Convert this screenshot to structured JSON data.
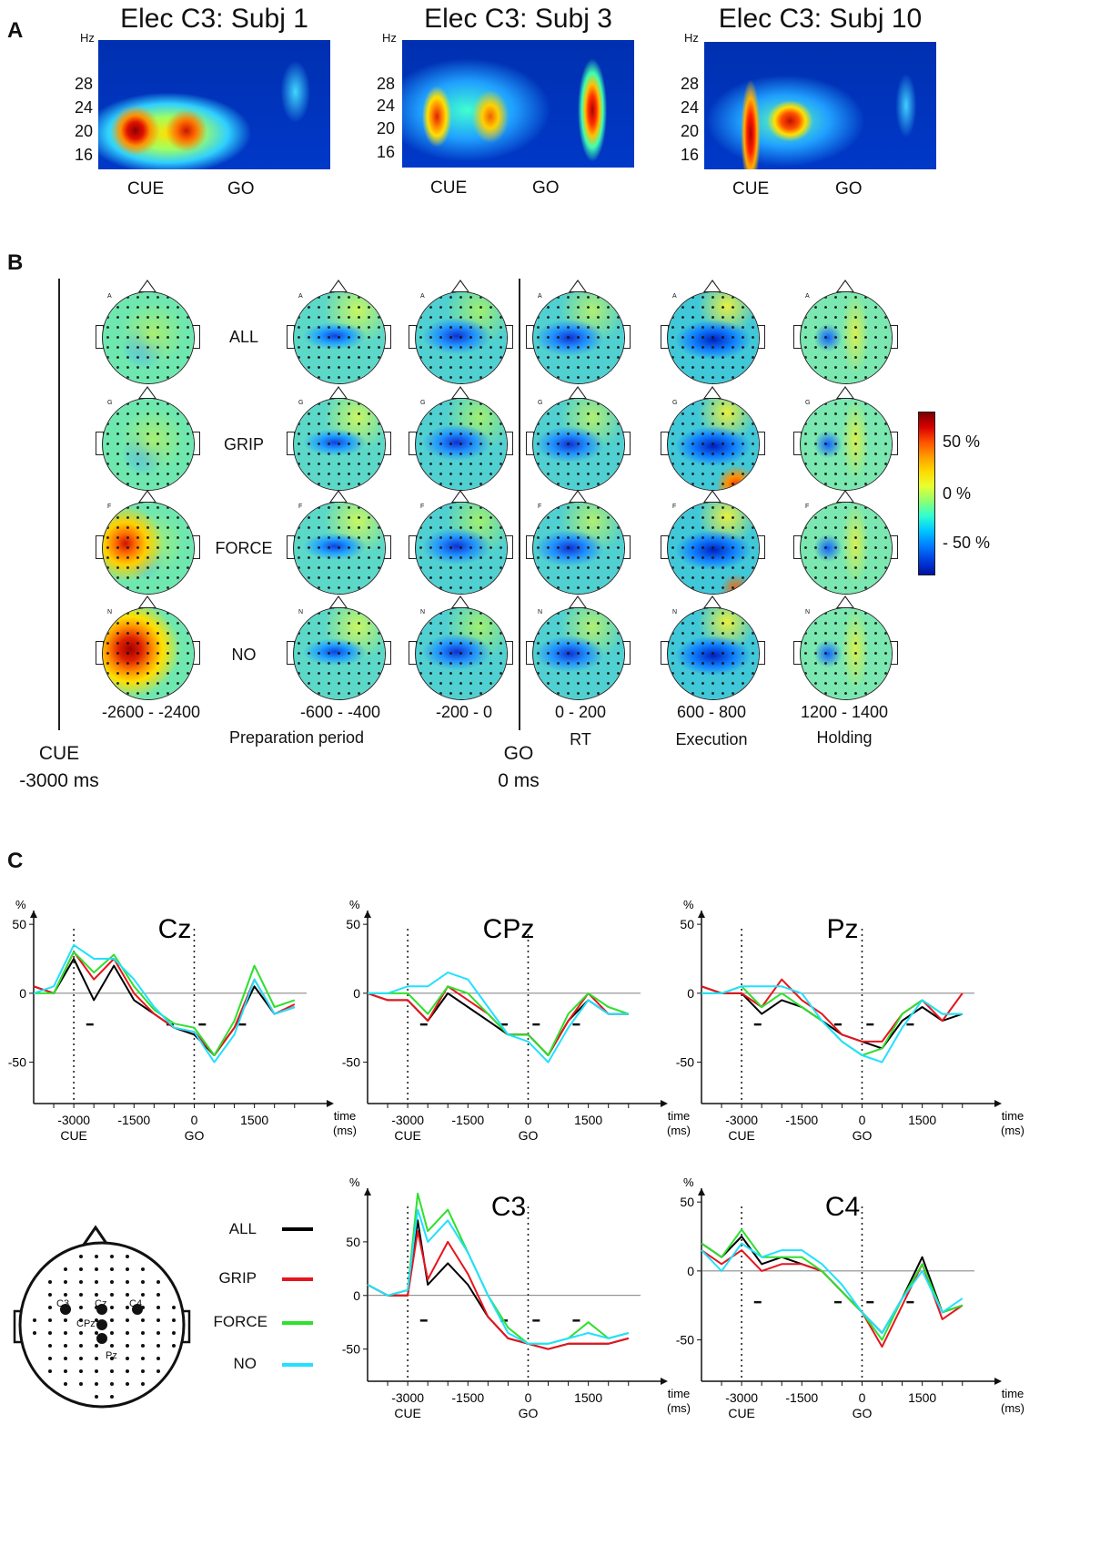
{
  "panels": {
    "a": "A",
    "b": "B",
    "c": "C"
  },
  "panel_a": {
    "hz_unit": "Hz",
    "y_ticks": [
      "28",
      "24",
      "20",
      "16"
    ],
    "cue": "CUE",
    "go": "GO",
    "spectrograms": [
      {
        "title": "Elec C3: Subj 1"
      },
      {
        "title": "Elec C3: Subj 3"
      },
      {
        "title": "Elec C3: Subj 10"
      }
    ]
  },
  "panel_b": {
    "row_labels": [
      "ALL",
      "GRIP",
      "FORCE",
      "NO"
    ],
    "row_letters": [
      "A",
      "G",
      "F",
      "N"
    ],
    "time_windows": [
      "-2600 - -2400",
      "-600 - -400",
      "-200 - 0",
      "0 - 200",
      "600 - 800",
      "1200 - 1400"
    ],
    "period_labels": [
      "Preparation period",
      "RT",
      "Execution",
      "Holding"
    ],
    "cue_label": "CUE",
    "cue_time": "-3000 ms",
    "go_label": "GO",
    "go_time": "0 ms",
    "colorbar_ticks": [
      "50 %",
      "0 %",
      "- 50 %"
    ]
  },
  "panel_c": {
    "legend": [
      {
        "name": "ALL",
        "color": "#000000"
      },
      {
        "name": "GRIP",
        "color": "#e8141c"
      },
      {
        "name": "FORCE",
        "color": "#2ee02e"
      },
      {
        "name": "NO",
        "color": "#22e0ff"
      }
    ],
    "electrode_labels": [
      "C3",
      "Cz",
      "C4",
      "CPz",
      "Pz"
    ]
  },
  "chart_data": [
    {
      "type": "line",
      "title": "Cz",
      "ylabel": "%",
      "xlabel": "time\n(ms)",
      "x_ticks": [
        "-3000",
        "-1500",
        "0",
        "1500"
      ],
      "x_sublabels": [
        "CUE",
        "GO"
      ],
      "y_ticks": [
        "50",
        "0",
        "-50"
      ],
      "xlim": [
        -4000,
        2800
      ],
      "ylim": [
        -80,
        60
      ],
      "x": [
        -4000,
        -3500,
        -3000,
        -2500,
        -2000,
        -1500,
        -1000,
        -500,
        0,
        500,
        1000,
        1500,
        2000,
        2500
      ],
      "series": [
        {
          "name": "ALL",
          "values": [
            5,
            0,
            25,
            -5,
            20,
            -5,
            -15,
            -25,
            -30,
            -45,
            -25,
            5,
            -15,
            -10
          ]
        },
        {
          "name": "GRIP",
          "values": [
            5,
            0,
            30,
            10,
            25,
            0,
            -15,
            -25,
            -28,
            -45,
            -25,
            10,
            -15,
            -8
          ]
        },
        {
          "name": "FORCE",
          "values": [
            0,
            0,
            30,
            15,
            28,
            5,
            -12,
            -22,
            -25,
            -45,
            -20,
            20,
            -10,
            -5
          ]
        },
        {
          "name": "NO",
          "values": [
            0,
            5,
            35,
            25,
            25,
            10,
            -10,
            -25,
            -28,
            -50,
            -30,
            10,
            -15,
            -10
          ]
        }
      ]
    },
    {
      "type": "line",
      "title": "CPz",
      "ylabel": "%",
      "xlabel": "time\n(ms)",
      "x_ticks": [
        "-3000",
        "-1500",
        "0",
        "1500"
      ],
      "x_sublabels": [
        "CUE",
        "GO"
      ],
      "y_ticks": [
        "50",
        "0",
        "-50"
      ],
      "xlim": [
        -4000,
        2800
      ],
      "ylim": [
        -80,
        60
      ],
      "x": [
        -4000,
        -3500,
        -3000,
        -2500,
        -2000,
        -1500,
        -1000,
        -500,
        0,
        500,
        1000,
        1500,
        2000,
        2500
      ],
      "series": [
        {
          "name": "ALL",
          "values": [
            0,
            -5,
            -5,
            -20,
            0,
            -10,
            -20,
            -30,
            -30,
            -45,
            -20,
            -5,
            -15,
            -15
          ]
        },
        {
          "name": "GRIP",
          "values": [
            0,
            -5,
            -5,
            -20,
            5,
            -5,
            -15,
            -30,
            -30,
            -45,
            -20,
            0,
            -15,
            -15
          ]
        },
        {
          "name": "FORCE",
          "values": [
            0,
            0,
            0,
            -15,
            5,
            0,
            -15,
            -30,
            -30,
            -45,
            -15,
            0,
            -10,
            -15
          ]
        },
        {
          "name": "NO",
          "values": [
            0,
            0,
            5,
            5,
            15,
            10,
            -10,
            -30,
            -35,
            -50,
            -25,
            -5,
            -15,
            -15
          ]
        }
      ]
    },
    {
      "type": "line",
      "title": "Pz",
      "ylabel": "%",
      "xlabel": "time\n(ms)",
      "x_ticks": [
        "-3000",
        "-1500",
        "0",
        "1500"
      ],
      "x_sublabels": [
        "CUE",
        "GO"
      ],
      "y_ticks": [
        "50",
        "0",
        "-50"
      ],
      "xlim": [
        -4000,
        2800
      ],
      "ylim": [
        -80,
        60
      ],
      "x": [
        -4000,
        -3500,
        -3000,
        -2500,
        -2000,
        -1500,
        -1000,
        -500,
        0,
        500,
        1000,
        1500,
        2000,
        2500
      ],
      "series": [
        {
          "name": "ALL",
          "values": [
            5,
            0,
            0,
            -15,
            -5,
            -10,
            -20,
            -30,
            -35,
            -40,
            -20,
            -10,
            -20,
            -15
          ]
        },
        {
          "name": "GRIP",
          "values": [
            5,
            0,
            0,
            -10,
            10,
            -5,
            -15,
            -30,
            -35,
            -35,
            -15,
            -5,
            -20,
            0
          ]
        },
        {
          "name": "FORCE",
          "values": [
            0,
            0,
            5,
            -10,
            0,
            -10,
            -20,
            -35,
            -45,
            -40,
            -15,
            -5,
            -15,
            -15
          ]
        },
        {
          "name": "NO",
          "values": [
            0,
            0,
            5,
            5,
            5,
            0,
            -20,
            -35,
            -45,
            -50,
            -25,
            -5,
            -15,
            -15
          ]
        }
      ]
    },
    {
      "type": "line",
      "title": "C3",
      "ylabel": "%",
      "xlabel": "time\n(ms)",
      "x_ticks": [
        "-3000",
        "-1500",
        "0",
        "1500"
      ],
      "x_sublabels": [
        "CUE",
        "GO"
      ],
      "y_ticks": [
        "50",
        "0",
        "-50"
      ],
      "xlim": [
        -4000,
        2800
      ],
      "ylim": [
        -80,
        100
      ],
      "x": [
        -4000,
        -3500,
        -3000,
        -2750,
        -2500,
        -2000,
        -1500,
        -1000,
        -500,
        0,
        500,
        1000,
        1500,
        2000,
        2500
      ],
      "series": [
        {
          "name": "ALL",
          "values": [
            10,
            0,
            0,
            70,
            10,
            30,
            10,
            -20,
            -40,
            -45,
            -50,
            -45,
            -45,
            -45,
            -40
          ]
        },
        {
          "name": "GRIP",
          "values": [
            10,
            0,
            0,
            60,
            15,
            50,
            20,
            -20,
            -40,
            -45,
            -50,
            -45,
            -45,
            -45,
            -40
          ]
        },
        {
          "name": "FORCE",
          "values": [
            10,
            0,
            5,
            95,
            60,
            80,
            40,
            0,
            -30,
            -45,
            -45,
            -40,
            -25,
            -40,
            -35
          ]
        },
        {
          "name": "NO",
          "values": [
            10,
            0,
            5,
            80,
            50,
            70,
            40,
            0,
            -35,
            -45,
            -45,
            -40,
            -35,
            -40,
            -35
          ]
        }
      ]
    },
    {
      "type": "line",
      "title": "C4",
      "ylabel": "%",
      "xlabel": "time\n(ms)",
      "x_ticks": [
        "-3000",
        "-1500",
        "0",
        "1500"
      ],
      "x_sublabels": [
        "CUE",
        "GO"
      ],
      "y_ticks": [
        "50",
        "0",
        "-50"
      ],
      "xlim": [
        -4000,
        2800
      ],
      "ylim": [
        -80,
        60
      ],
      "x": [
        -4000,
        -3500,
        -3000,
        -2500,
        -2000,
        -1500,
        -1000,
        -500,
        0,
        500,
        1000,
        1500,
        2000,
        2500
      ],
      "series": [
        {
          "name": "ALL",
          "values": [
            20,
            10,
            25,
            5,
            10,
            5,
            0,
            -15,
            -30,
            -45,
            -20,
            10,
            -30,
            -25
          ]
        },
        {
          "name": "GRIP",
          "values": [
            15,
            5,
            15,
            0,
            5,
            5,
            0,
            -15,
            -30,
            -55,
            -25,
            5,
            -35,
            -25
          ]
        },
        {
          "name": "FORCE",
          "values": [
            20,
            10,
            30,
            10,
            10,
            10,
            0,
            -15,
            -30,
            -50,
            -20,
            5,
            -30,
            -25
          ]
        },
        {
          "name": "NO",
          "values": [
            15,
            0,
            20,
            10,
            15,
            15,
            5,
            -10,
            -30,
            -45,
            -20,
            0,
            -30,
            -20
          ]
        }
      ]
    }
  ]
}
